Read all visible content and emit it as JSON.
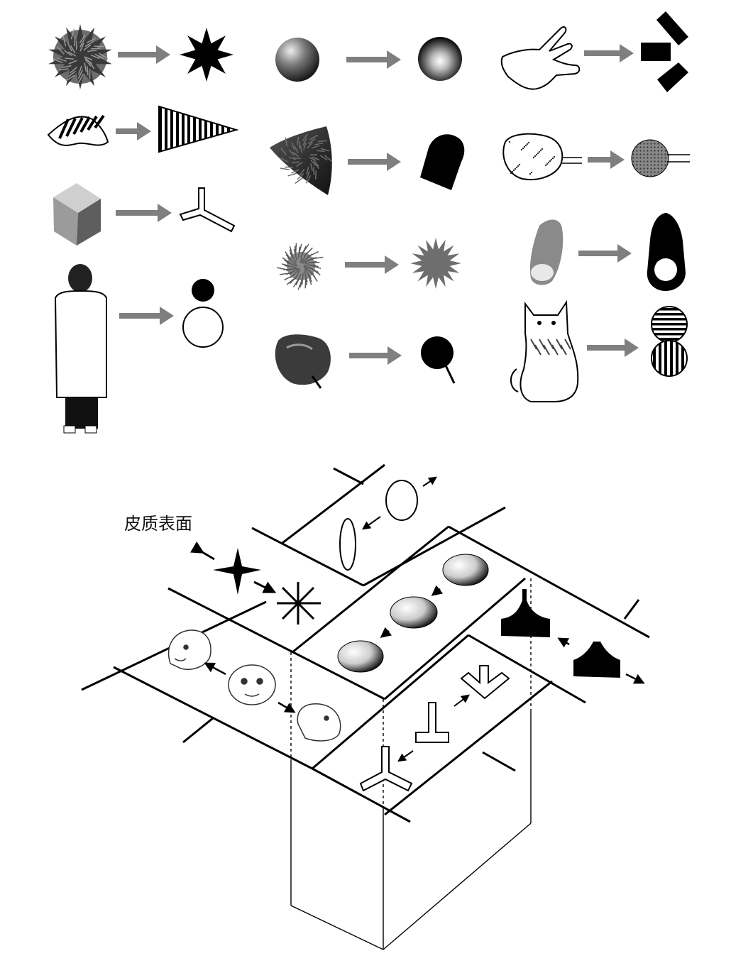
{
  "figure": {
    "cortex_label": "皮质表面",
    "arrow_color": "#7f7f7f",
    "ink_color": "#000000",
    "object_pairs": [
      {
        "object": "spiky-ball-icon",
        "feature": "eight-point-star-icon"
      },
      {
        "object": "striped-cloth-icon",
        "feature": "striped-triangle-icon"
      },
      {
        "object": "shaded-cube-icon",
        "feature": "t-junction-icon"
      },
      {
        "object": "standing-person-icon",
        "feature": "head-body-circles-icon"
      },
      {
        "object": "shaded-sphere-icon",
        "feature": "gradient-disc-icon"
      },
      {
        "object": "furry-cone-icon",
        "feature": "black-rounded-tab-icon"
      },
      {
        "object": "fuzzy-burr-icon",
        "feature": "grey-starburst-icon"
      },
      {
        "object": "apple-icon",
        "feature": "black-disc-with-stem-icon"
      },
      {
        "object": "hand-icon",
        "feature": "black-bar-junction-icon"
      },
      {
        "object": "potato-icon",
        "feature": "dotted-disc-with-lines-icon"
      },
      {
        "object": "sweet-potato-icon",
        "feature": "black-drop-with-hole-icon"
      },
      {
        "object": "cat-icon",
        "feature": "striped-double-circle-icon"
      }
    ]
  }
}
